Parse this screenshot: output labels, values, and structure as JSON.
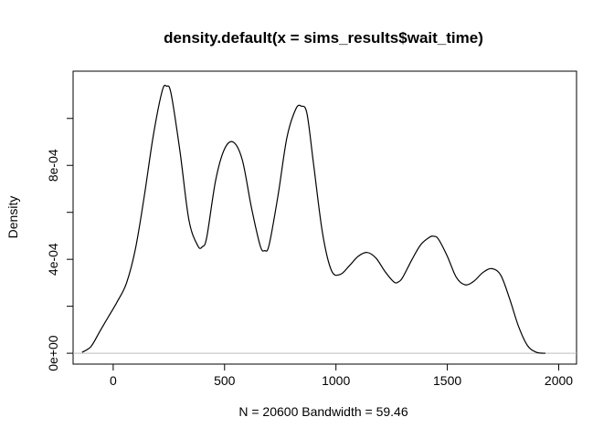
{
  "chart_data": {
    "type": "line",
    "title": "density.default(x = sims_results$wait_time)",
    "xlabel": "N = 20600   Bandwidth = 59.46",
    "ylabel": "Density",
    "xlim": [
      -180,
      2080
    ],
    "ylim": [
      -4.62e-05,
      0.0012012
    ],
    "xticks": [
      0,
      500,
      1000,
      1500,
      2000
    ],
    "xtick_labels": [
      "0",
      "500",
      "1000",
      "1500",
      "2000"
    ],
    "yticks": [
      0,
      0.0002,
      0.0004,
      0.0006,
      0.0008,
      0.001
    ],
    "ytick_labels": [
      "0e+00",
      "",
      "4e-04",
      "",
      "8e-04",
      ""
    ],
    "grid": false,
    "baseline": 0,
    "baseline_color": "#bebebe",
    "line_color": "#000000",
    "series": [
      {
        "x": [
          -140,
          -100,
          -60,
          -20,
          20,
          60,
          100,
          140,
          180,
          220,
          240,
          260,
          300,
          340,
          380,
          400,
          420,
          460,
          500,
          540,
          580,
          620,
          660,
          680,
          700,
          740,
          780,
          820,
          845,
          870,
          900,
          940,
          980,
          1020,
          1060,
          1100,
          1140,
          1180,
          1220,
          1260,
          1280,
          1300,
          1340,
          1380,
          1420,
          1440,
          1460,
          1500,
          1540,
          1580,
          1620,
          1660,
          1700,
          1740,
          1780,
          1820,
          1860,
          1900,
          1940
        ],
        "y": [
          4e-06,
          2.83e-05,
          9.31e-05,
          0.0001578,
          0.0002226,
          0.0002995,
          0.0004453,
          0.0006719,
          0.0009269,
          0.0011172,
          0.0011374,
          0.001105,
          0.0008583,
          0.0005668,
          0.0004575,
          0.0004534,
          0.0004939,
          0.0007367,
          0.0008704,
          0.0008987,
          0.0008218,
          0.0006233,
          0.0004575,
          0.0004372,
          0.0004615,
          0.0006719,
          0.0009188,
          0.0010403,
          0.0010524,
          0.00102,
          0.0008016,
          0.0005101,
          0.0003521,
          0.000336,
          0.0003724,
          0.0004129,
          0.0004291,
          0.0004048,
          0.0003481,
          0.0003036,
          0.0003036,
          0.0003238,
          0.0003967,
          0.0004615,
          0.0004939,
          0.000498,
          0.0004858,
          0.0004129,
          0.0003238,
          0.0002914,
          0.0003076,
          0.0003441,
          0.0003603,
          0.0003319,
          0.0002307,
          0.0001133,
          3.24e-05,
          4e-06,
          0.0
        ]
      }
    ]
  }
}
